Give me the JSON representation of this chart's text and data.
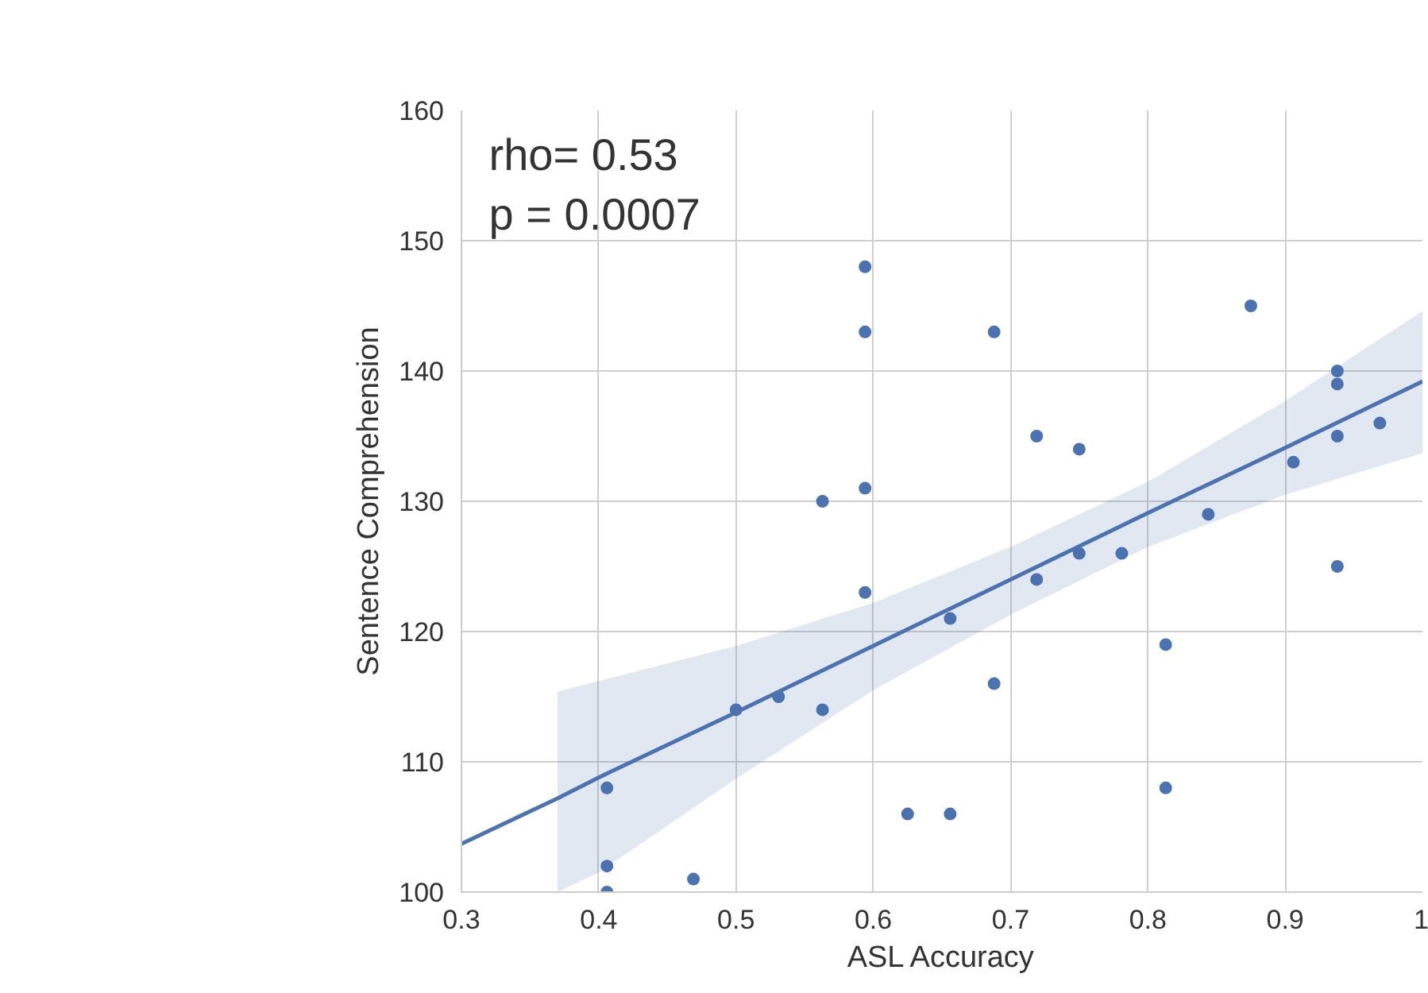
{
  "chart_data": {
    "type": "scatter",
    "xlabel": "ASL Accuracy",
    "ylabel": "Sentence Comprehension",
    "annotations": [
      "rho= 0.53",
      "p = 0.0007"
    ],
    "xlim": [
      0.3,
      1.0
    ],
    "ylim": [
      100,
      160
    ],
    "xticks": [
      0.3,
      0.4,
      0.5,
      0.6,
      0.7,
      0.8,
      0.9,
      {
        "value": 1.0,
        "label": "1"
      }
    ],
    "yticks": [
      100,
      110,
      120,
      130,
      140,
      150,
      160
    ],
    "grid": true,
    "marker": "circle",
    "line_style": "solid",
    "series": [
      {
        "color": "#4c72b0",
        "x": [
          0.594,
          0.594,
          0.688,
          0.875,
          0.938,
          0.938,
          0.719,
          0.75,
          0.938,
          0.969,
          0.906,
          0.563,
          0.594,
          0.844,
          0.75,
          0.781,
          0.938,
          0.719,
          0.594,
          0.656,
          0.813,
          0.688,
          0.5,
          0.531,
          0.563,
          0.406,
          0.813,
          0.625,
          0.656,
          0.406,
          0.469,
          0.406
        ],
        "values": [
          148,
          143,
          143,
          145,
          140,
          139,
          135,
          134,
          135,
          136,
          133,
          130,
          131,
          129,
          126,
          126,
          125,
          124,
          123,
          121,
          119,
          116,
          114,
          115,
          114,
          108,
          108,
          106,
          106,
          102,
          101,
          100
        ]
      },
      {
        "type": "line",
        "marker": "none",
        "color": "#4c72b0",
        "x": [
          0.3,
          0.37,
          0.4,
          0.5,
          0.6,
          0.7,
          0.8,
          0.9,
          1.0
        ],
        "values": [
          103.7,
          107.2,
          108.8,
          113.8,
          118.9,
          124.0,
          129.1,
          134.1,
          139.2
        ],
        "lower": [
          null,
          100,
          101.5,
          108.7,
          115.5,
          121.3,
          126.5,
          130.5,
          133.7
        ],
        "upper": [
          null,
          115.4,
          116.2,
          118.9,
          122.2,
          126.5,
          131.5,
          137.7,
          144.6
        ]
      }
    ]
  }
}
